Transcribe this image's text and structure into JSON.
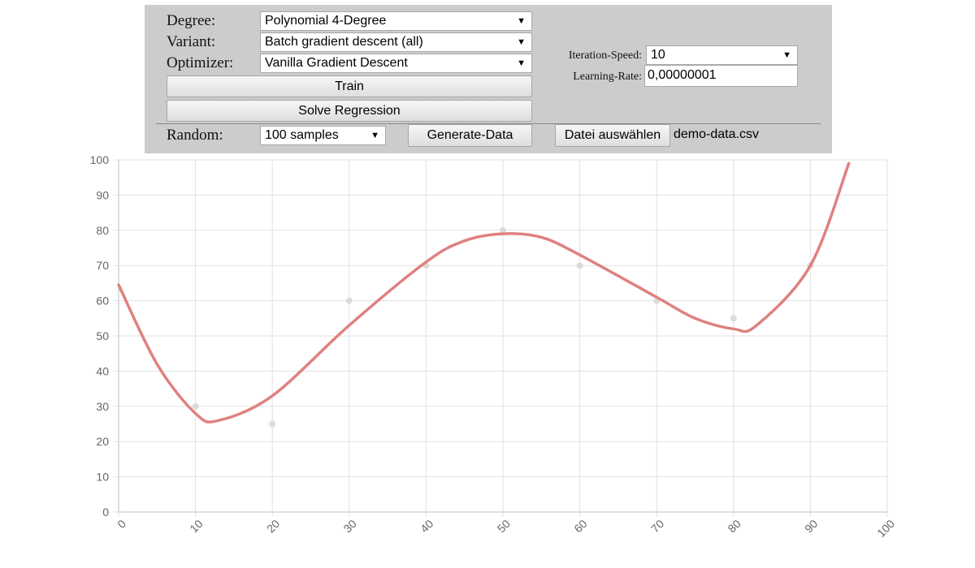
{
  "controls": {
    "degree_label": "Degree:",
    "degree_value": "Polynomial 4-Degree",
    "variant_label": "Variant:",
    "variant_value": "Batch gradient descent (all)",
    "optimizer_label": "Optimizer:",
    "optimizer_value": "Vanilla Gradient Descent",
    "train_label": "Train",
    "solve_label": "Solve Regression",
    "iteration_speed_label": "Iteration-Speed:",
    "iteration_speed_value": "10",
    "learning_rate_label": "Learning-Rate:",
    "learning_rate_value": "0,00000001",
    "random_label": "Random:",
    "samples_value": "100 samples",
    "generate_label": "Generate-Data",
    "file_button_label": "Datei auswählen",
    "file_name": "demo-data.csv"
  },
  "chart_data": {
    "type": "scatter",
    "xlim": [
      0,
      100
    ],
    "ylim": [
      0,
      100
    ],
    "x_ticks": [
      0,
      10,
      20,
      30,
      40,
      50,
      60,
      70,
      80,
      90,
      100
    ],
    "y_ticks": [
      0,
      10,
      20,
      30,
      40,
      50,
      60,
      70,
      80,
      90,
      100
    ],
    "grid": true,
    "points": [
      {
        "x": 10,
        "y": 30
      },
      {
        "x": 20,
        "y": 25
      },
      {
        "x": 30,
        "y": 60
      },
      {
        "x": 40,
        "y": 70
      },
      {
        "x": 50,
        "y": 80
      },
      {
        "x": 60,
        "y": 70
      },
      {
        "x": 70,
        "y": 60
      },
      {
        "x": 80,
        "y": 55
      },
      {
        "x": 90,
        "y": 70
      }
    ],
    "fit_curve": {
      "degree": 4,
      "points": [
        {
          "x": 0,
          "y": 64.5
        },
        {
          "x": 5,
          "y": 42
        },
        {
          "x": 10,
          "y": 28
        },
        {
          "x": 13,
          "y": 26
        },
        {
          "x": 20,
          "y": 33
        },
        {
          "x": 30,
          "y": 53
        },
        {
          "x": 40,
          "y": 71
        },
        {
          "x": 45,
          "y": 77
        },
        {
          "x": 50,
          "y": 79
        },
        {
          "x": 55,
          "y": 78
        },
        {
          "x": 60,
          "y": 73
        },
        {
          "x": 70,
          "y": 61
        },
        {
          "x": 75,
          "y": 55
        },
        {
          "x": 80,
          "y": 52
        },
        {
          "x": 83,
          "y": 53
        },
        {
          "x": 90,
          "y": 70
        },
        {
          "x": 95,
          "y": 99
        }
      ]
    },
    "colors": {
      "curve": "#e08080",
      "points": "#d4d4d4",
      "grid": "#e2e2e2",
      "axis": "#bfbfbf"
    }
  }
}
